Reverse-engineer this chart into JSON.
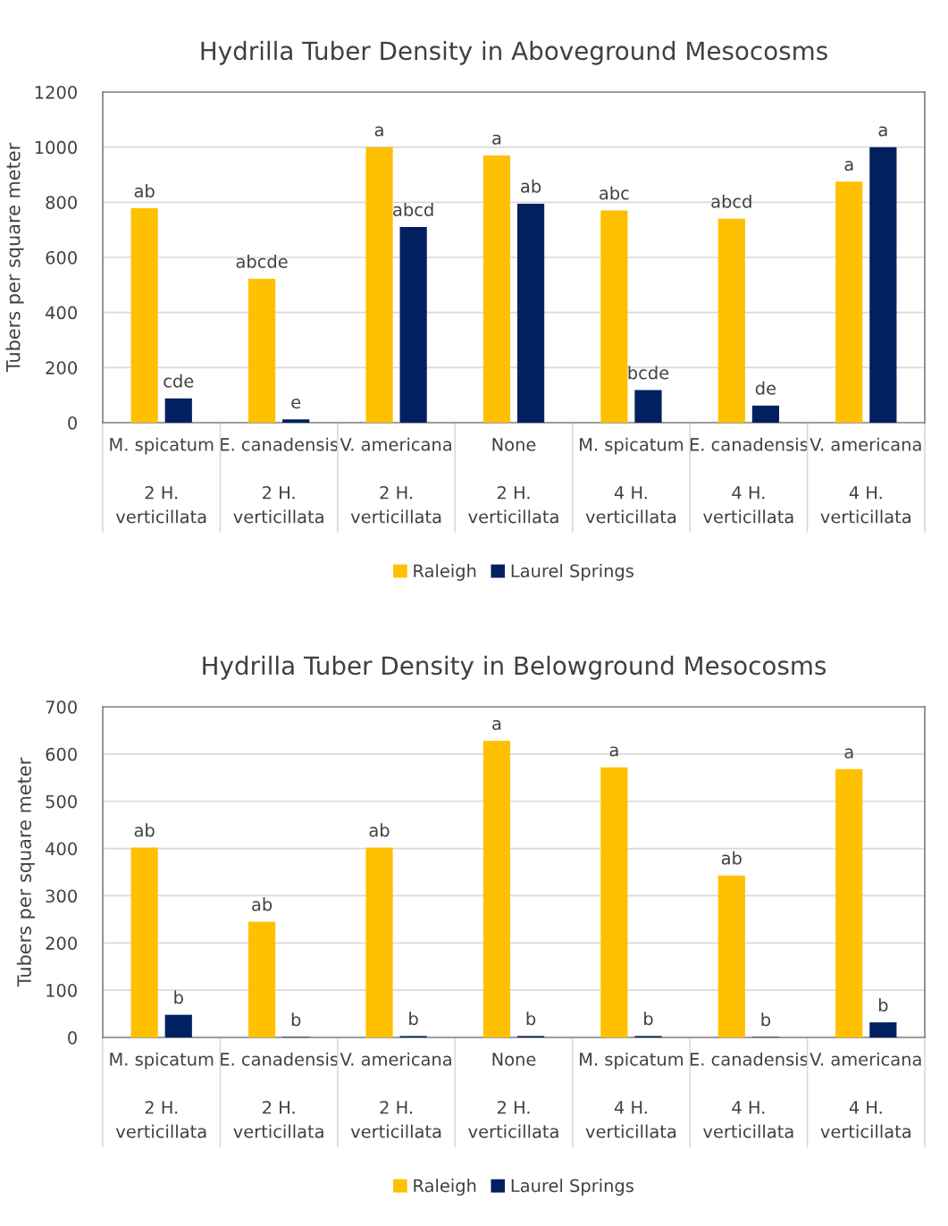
{
  "chart_data": [
    {
      "type": "bar",
      "title": "Hydrilla Tuber Density in Aboveground Mesocosms",
      "ylabel": "Tubers per square meter",
      "categories": [
        "M. spicatum\n\n2 H.\nverticillata",
        "E. canadensis\n\n2 H.\nverticillata",
        "V. americana\n\n2 H.\nverticillata",
        "None\n\n2 H.\nverticillata",
        "M. spicatum\n\n4 H.\nverticillata",
        "E. canadensis\n\n4 H.\nverticillata",
        "V. americana\n\n4 H.\nverticillata"
      ],
      "series": [
        {
          "name": "Raleigh",
          "color": "#ffc000",
          "values": [
            778,
            522,
            1000,
            970,
            770,
            740,
            875
          ],
          "value_labels": [
            "ab",
            "abcde",
            "a",
            "a",
            "abc",
            "abcd",
            "a"
          ]
        },
        {
          "name": "Laurel Springs",
          "color": "#002060",
          "values": [
            88,
            12,
            710,
            795,
            118,
            62,
            1000
          ],
          "value_labels": [
            "cde",
            "e",
            "abcd",
            "ab",
            "bcde",
            "de",
            "a"
          ]
        }
      ],
      "ylim": [
        0,
        1200
      ],
      "yticks": [
        0,
        200,
        400,
        600,
        800,
        1000,
        1200
      ],
      "grid": "y",
      "legend": "bottom"
    },
    {
      "type": "bar",
      "title": "Hydrilla Tuber Density in Belowground Mesocosms",
      "ylabel": "Tubers per square meter",
      "categories": [
        "M. spicatum\n\n2 H.\nverticillata",
        "E. canadensis\n\n2 H.\nverticillata",
        "V. americana\n\n2 H.\nverticillata",
        "None\n\n2 H.\nverticillata",
        "M. spicatum\n\n4 H.\nverticillata",
        "E. canadensis\n\n4 H.\nverticillata",
        "V. americana\n\n4 H.\nverticillata"
      ],
      "series": [
        {
          "name": "Raleigh",
          "color": "#ffc000",
          "values": [
            402,
            245,
            402,
            628,
            572,
            343,
            568
          ],
          "value_labels": [
            "ab",
            "ab",
            "ab",
            "a",
            "a",
            "ab",
            "a"
          ]
        },
        {
          "name": "Laurel Springs",
          "color": "#002060",
          "values": [
            48,
            1,
            3,
            3,
            3,
            1,
            32
          ],
          "value_labels": [
            "b",
            "b",
            "b",
            "b",
            "b",
            "b",
            "b"
          ]
        }
      ],
      "ylim": [
        0,
        700
      ],
      "yticks": [
        0,
        100,
        200,
        300,
        400,
        500,
        600,
        700
      ],
      "grid": "y",
      "legend": "bottom"
    }
  ]
}
